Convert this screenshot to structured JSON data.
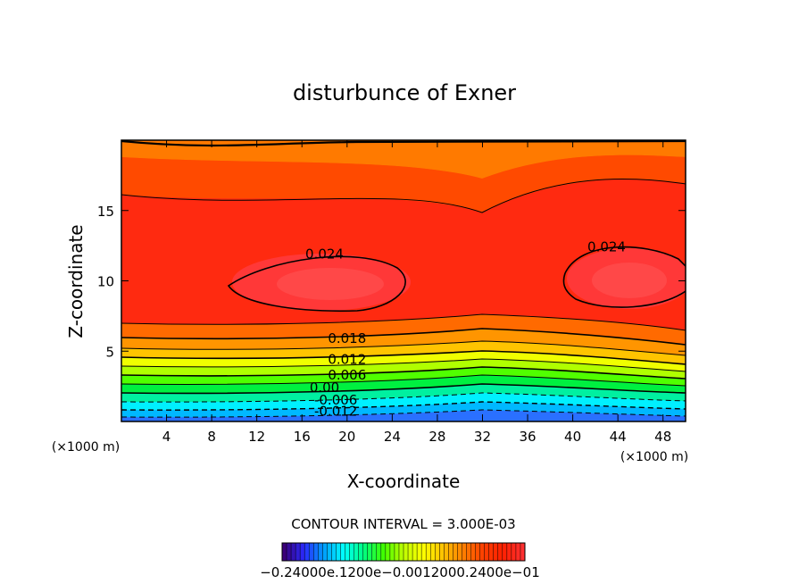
{
  "chart_data": {
    "type": "contour",
    "title": "disturbunce of Exner",
    "xlabel": "X-coordinate",
    "ylabel": "Z-coordinate",
    "xunit": "(×1000 m)",
    "xlim": [
      0,
      50
    ],
    "ylim": [
      0,
      20
    ],
    "xticks": [
      4,
      8,
      12,
      16,
      20,
      24,
      28,
      32,
      36,
      40,
      44,
      48
    ],
    "yticks": [
      5,
      10,
      15
    ],
    "contour_interval_text": "CONTOUR INTERVAL = 3.000E-03",
    "contour_labels": [
      {
        "text": "0.024",
        "x": 18,
        "z": 11.6
      },
      {
        "text": "0.024",
        "x": 43,
        "z": 12.1
      },
      {
        "text": "0.018",
        "x": 20,
        "z": 5.6
      },
      {
        "text": "0.012",
        "x": 20,
        "z": 4.1
      },
      {
        "text": "0.006",
        "x": 20,
        "z": 3.0
      },
      {
        "text": "0.00",
        "x": 18,
        "z": 2.1
      },
      {
        "text": "-0.006",
        "x": 19,
        "z": 1.2
      },
      {
        "text": "-0.012",
        "x": 19,
        "z": 0.4
      }
    ],
    "colorbar": {
      "min": -0.024,
      "max": 0.024,
      "tick_text": "−0.24000e−01",
      "tick_text_2": "−0.12000e−01",
      "tick_text_3": "0.00",
      "tick_text_4": "0.12000e−01",
      "tick_text_5": "0.24000e−01",
      "label_rendered": "−0.24000e.1200e−0.0012000.2400e−01"
    },
    "color_scale": [
      "#3a007a",
      "#2a2aff",
      "#00a0ff",
      "#00ffff",
      "#00ff80",
      "#40ff00",
      "#c0ff00",
      "#ffff00",
      "#ffc000",
      "#ff8000",
      "#ff4000",
      "#ff2000",
      "#ff3030"
    ]
  }
}
